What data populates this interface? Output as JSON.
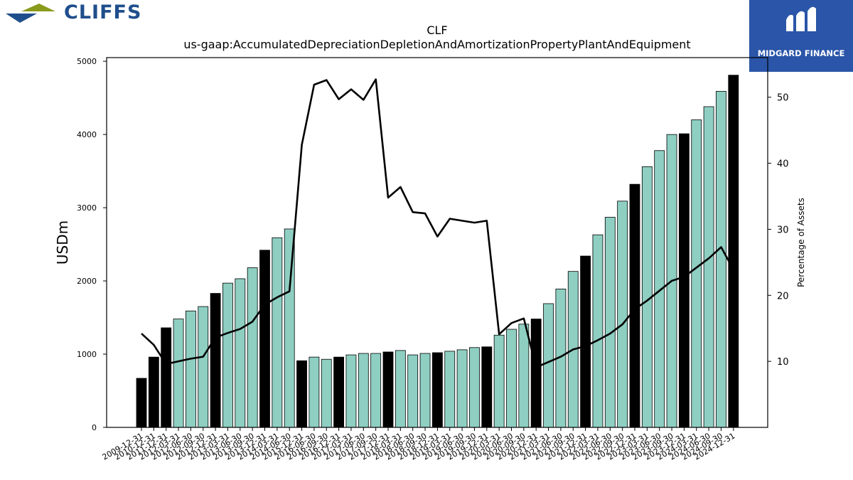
{
  "header": {
    "brand_left": "CLIFFS",
    "brand_right": "MIDGARD FINANCE"
  },
  "chart_data": {
    "type": "bar",
    "title": "CLF",
    "subtitle": "us-gaap:AccumulatedDepreciationDepletionAndAmortizationPropertyPlantAndEquipment",
    "ylabel": "USDm",
    "y2label": "Percentage of Assets",
    "ylim": [
      0,
      5050
    ],
    "y2lim": [
      0,
      56
    ],
    "yticks": [
      0,
      1000,
      2000,
      3000,
      4000,
      5000
    ],
    "y2ticks": [
      10,
      20,
      30,
      40,
      50
    ],
    "grid": false,
    "colors": {
      "annual": "#000000",
      "quarterly": "#8ecfc2",
      "line": "#000000"
    },
    "categories": [
      "2009-12-31",
      "2010-12-31",
      "2011-12-31",
      "2012-03-31",
      "2012-06-30",
      "2012-09-30",
      "2012-12-31",
      "2013-03-31",
      "2013-06-30",
      "2013-09-30",
      "2013-12-31",
      "2014-03-31",
      "2014-06-30",
      "2015-12-31",
      "2016-06-30",
      "2016-09-30",
      "2016-12-31",
      "2017-03-31",
      "2017-06-30",
      "2017-09-30",
      "2017-12-31",
      "2018-03-31",
      "2018-06-30",
      "2018-09-30",
      "2018-12-31",
      "2019-03-31",
      "2019-06-30",
      "2019-09-30",
      "2019-12-31",
      "2020-03-31",
      "2020-06-30",
      "2020-09-30",
      "2020-12-31",
      "2021-03-31",
      "2021-06-30",
      "2021-09-30",
      "2021-12-31",
      "2022-03-31",
      "2022-06-30",
      "2022-09-30",
      "2022-12-31",
      "2023-03-31",
      "2023-06-30",
      "2023-09-30",
      "2023-12-31",
      "2024-03-31",
      "2024-06-30",
      "2024-09-30",
      "2024-12-31"
    ],
    "annual_flags": [
      1,
      1,
      1,
      0,
      0,
      0,
      1,
      0,
      0,
      0,
      1,
      0,
      0,
      1,
      0,
      0,
      1,
      0,
      0,
      0,
      1,
      0,
      0,
      0,
      1,
      0,
      0,
      0,
      1,
      0,
      0,
      0,
      1,
      0,
      0,
      0,
      1,
      0,
      0,
      0,
      1,
      0,
      0,
      0,
      1,
      0,
      0,
      0,
      1
    ],
    "series": [
      {
        "name": "USDm",
        "values": [
          670,
          960,
          1360,
          1480,
          1590,
          1650,
          1830,
          1970,
          2030,
          2180,
          2420,
          2590,
          2710,
          910,
          960,
          930,
          960,
          990,
          1010,
          1010,
          1030,
          1050,
          990,
          1010,
          1020,
          1040,
          1060,
          1090,
          1100,
          1260,
          1340,
          1410,
          1480,
          1690,
          1890,
          2130,
          2340,
          2630,
          2870,
          3090,
          3320,
          3560,
          3780,
          4000,
          4010,
          4200,
          4380,
          4590,
          4810
        ]
      },
      {
        "name": "Percentage of Assets",
        "values": [
          14.2,
          12.5,
          9.6,
          10.0,
          10.4,
          10.7,
          13.6,
          14.3,
          14.9,
          16.0,
          18.6,
          19.7,
          20.6,
          42.8,
          51.9,
          52.6,
          49.7,
          51.2,
          49.6,
          52.7,
          34.8,
          36.4,
          32.6,
          32.4,
          28.9,
          31.6,
          31.3,
          31.0,
          31.3,
          14.1,
          15.8,
          16.5,
          9.1,
          9.9,
          10.7,
          11.8,
          12.3,
          13.2,
          14.2,
          15.6,
          17.9,
          19.2,
          20.7,
          22.2,
          22.8,
          24.2,
          25.6,
          27.3,
          23.9
        ]
      }
    ]
  }
}
